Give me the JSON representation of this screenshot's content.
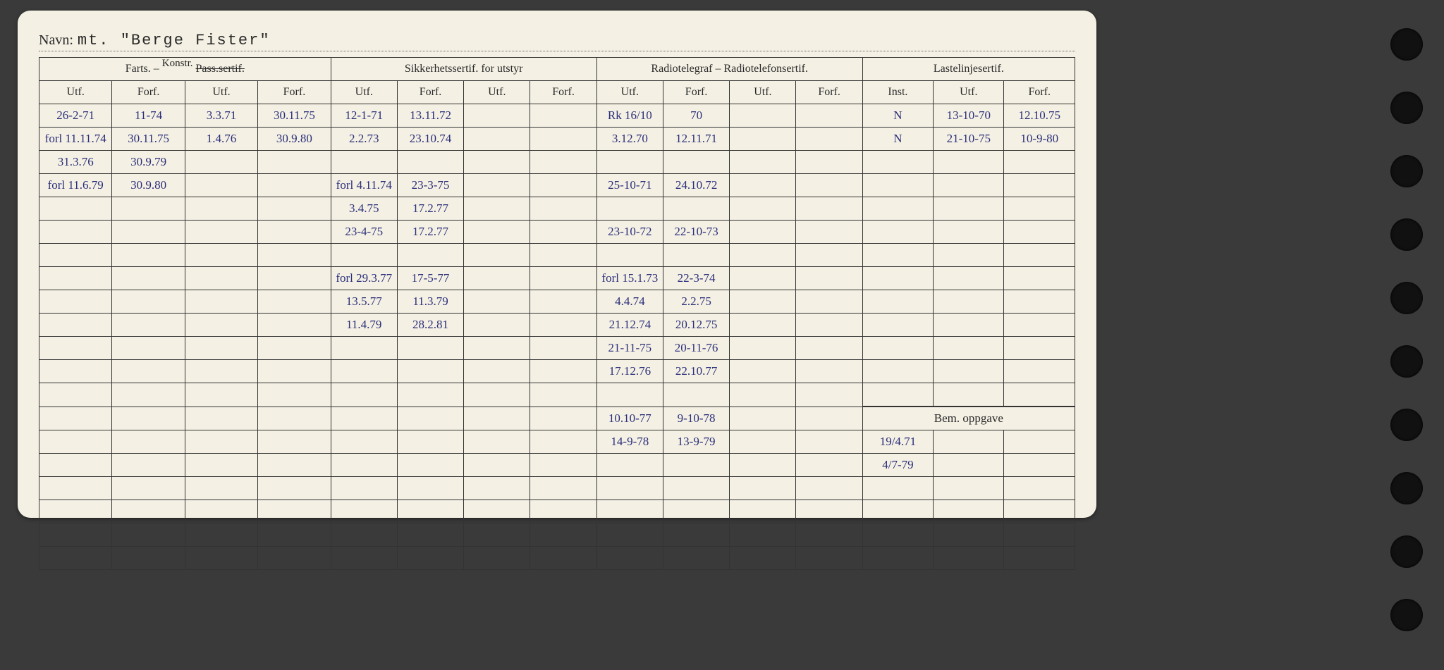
{
  "navn_label": "Navn:",
  "navn_value": "mt. \"Berge Fister\"",
  "group_headers": {
    "farts": "Farts. – ",
    "farts_strike": "Pass.sertif.",
    "farts_over": "Konstr.",
    "sikker": "Sikkerhetssertif. for utstyr",
    "radio": "Radiotelegraf – Radiotelefonsertif.",
    "laste": "Lastelinjesertif.",
    "bem": "Bem. oppgave"
  },
  "sub_headers": {
    "utf": "Utf.",
    "forf": "Forf.",
    "inst": "Inst."
  },
  "rows": [
    {
      "c": [
        "26-2-71",
        "11-74",
        "3.3.71",
        "30.11.75",
        "12-1-71",
        "13.11.72",
        "",
        "",
        "Rk 16/10",
        "70",
        "",
        "",
        "N",
        "13-10-70",
        "12.10.75"
      ]
    },
    {
      "c": [
        "forl 11.11.74",
        "30.11.75",
        "1.4.76",
        "30.9.80",
        "2.2.73",
        "23.10.74",
        "",
        "",
        "3.12.70",
        "12.11.71",
        "",
        "",
        "N",
        "21-10-75",
        "10-9-80"
      ]
    },
    {
      "c": [
        "31.3.76",
        "30.9.79",
        "",
        "",
        "",
        "",
        "",
        "",
        "",
        "",
        "",
        "",
        "",
        "",
        ""
      ]
    },
    {
      "c": [
        "forl 11.6.79",
        "30.9.80",
        "",
        "",
        "forl 4.11.74",
        "23-3-75",
        "",
        "",
        "25-10-71",
        "24.10.72",
        "",
        "",
        "",
        "",
        ""
      ]
    },
    {
      "c": [
        "",
        "",
        "",
        "",
        "3.4.75",
        "17.2.77",
        "",
        "",
        "",
        "",
        "",
        "",
        "",
        "",
        ""
      ]
    },
    {
      "c": [
        "",
        "",
        "",
        "",
        "23-4-75",
        "17.2.77",
        "",
        "",
        "23-10-72",
        "22-10-73",
        "",
        "",
        "",
        "",
        ""
      ]
    },
    {
      "c": [
        "",
        "",
        "",
        "",
        "",
        "",
        "",
        "",
        "",
        "",
        "",
        "",
        "",
        "",
        ""
      ]
    },
    {
      "c": [
        "",
        "",
        "",
        "",
        "forl 29.3.77",
        "17-5-77",
        "",
        "",
        "forl 15.1.73",
        "22-3-74",
        "",
        "",
        "",
        "",
        ""
      ]
    },
    {
      "c": [
        "",
        "",
        "",
        "",
        "13.5.77",
        "11.3.79",
        "",
        "",
        "4.4.74",
        "2.2.75",
        "",
        "",
        "",
        "",
        ""
      ]
    },
    {
      "c": [
        "",
        "",
        "",
        "",
        "11.4.79",
        "28.2.81",
        "",
        "",
        "21.12.74",
        "20.12.75",
        "",
        "",
        "",
        "",
        ""
      ]
    },
    {
      "c": [
        "",
        "",
        "",
        "",
        "",
        "",
        "",
        "",
        "21-11-75",
        "20-11-76",
        "",
        "",
        "",
        "",
        ""
      ]
    },
    {
      "c": [
        "",
        "",
        "",
        "",
        "",
        "",
        "",
        "",
        "17.12.76",
        "22.10.77",
        "",
        "",
        "",
        "",
        ""
      ]
    },
    {
      "c": [
        "",
        "",
        "",
        "",
        "",
        "",
        "",
        "",
        "",
        "",
        "",
        "",
        "",
        "",
        ""
      ]
    },
    {
      "c": [
        "",
        "",
        "",
        "",
        "",
        "",
        "",
        "",
        "10.10-77",
        "9-10-78",
        "",
        "",
        "",
        "",
        ""
      ]
    },
    {
      "c": [
        "",
        "",
        "",
        "",
        "",
        "",
        "",
        "",
        "14-9-78",
        "13-9-79",
        "",
        "",
        "",
        "",
        ""
      ]
    }
  ],
  "bem_rows": [
    "19/4.71",
    "4/7-79",
    "",
    "",
    "",
    ""
  ]
}
